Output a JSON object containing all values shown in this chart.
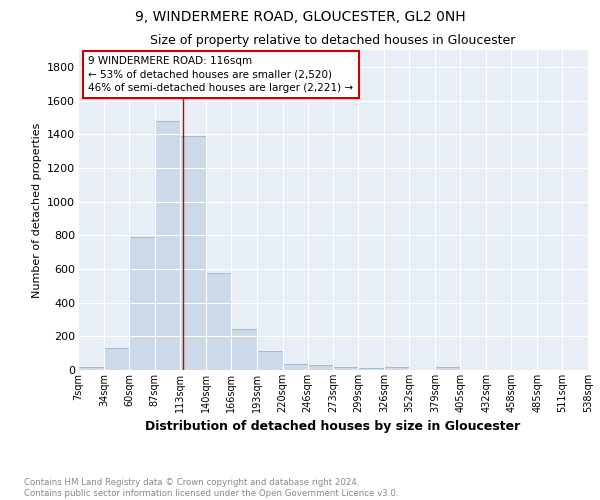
{
  "title": "9, WINDERMERE ROAD, GLOUCESTER, GL2 0NH",
  "subtitle": "Size of property relative to detached houses in Gloucester",
  "xlabel": "Distribution of detached houses by size in Gloucester",
  "ylabel": "Number of detached properties",
  "bar_color": "#ccd9e8",
  "bar_edgecolor": "#9ab4cc",
  "bg_color": "#e8eef6",
  "grid_color": "white",
  "annotation_line1": "9 WINDERMERE ROAD: 116sqm",
  "annotation_line2": "← 53% of detached houses are smaller (2,520)",
  "annotation_line3": "46% of semi-detached houses are larger (2,221) →",
  "vline_x": 116,
  "vline_color": "#cc0000",
  "footnote": "Contains HM Land Registry data © Crown copyright and database right 2024.\nContains public sector information licensed under the Open Government Licence v3.0.",
  "bin_edges": [
    7,
    34,
    60,
    87,
    113,
    140,
    166,
    193,
    220,
    246,
    273,
    299,
    326,
    352,
    379,
    405,
    432,
    458,
    485,
    511,
    538
  ],
  "bar_heights": [
    15,
    130,
    790,
    1480,
    1390,
    575,
    245,
    115,
    35,
    28,
    15,
    10,
    20,
    0,
    20,
    0,
    0,
    0,
    0,
    0
  ],
  "tick_labels": [
    "7sqm",
    "34sqm",
    "60sqm",
    "87sqm",
    "113sqm",
    "140sqm",
    "166sqm",
    "193sqm",
    "220sqm",
    "246sqm",
    "273sqm",
    "299sqm",
    "326sqm",
    "352sqm",
    "379sqm",
    "405sqm",
    "432sqm",
    "458sqm",
    "485sqm",
    "511sqm",
    "538sqm"
  ],
  "ylim": [
    0,
    1900
  ],
  "yticks": [
    0,
    200,
    400,
    600,
    800,
    1000,
    1200,
    1400,
    1600,
    1800
  ]
}
